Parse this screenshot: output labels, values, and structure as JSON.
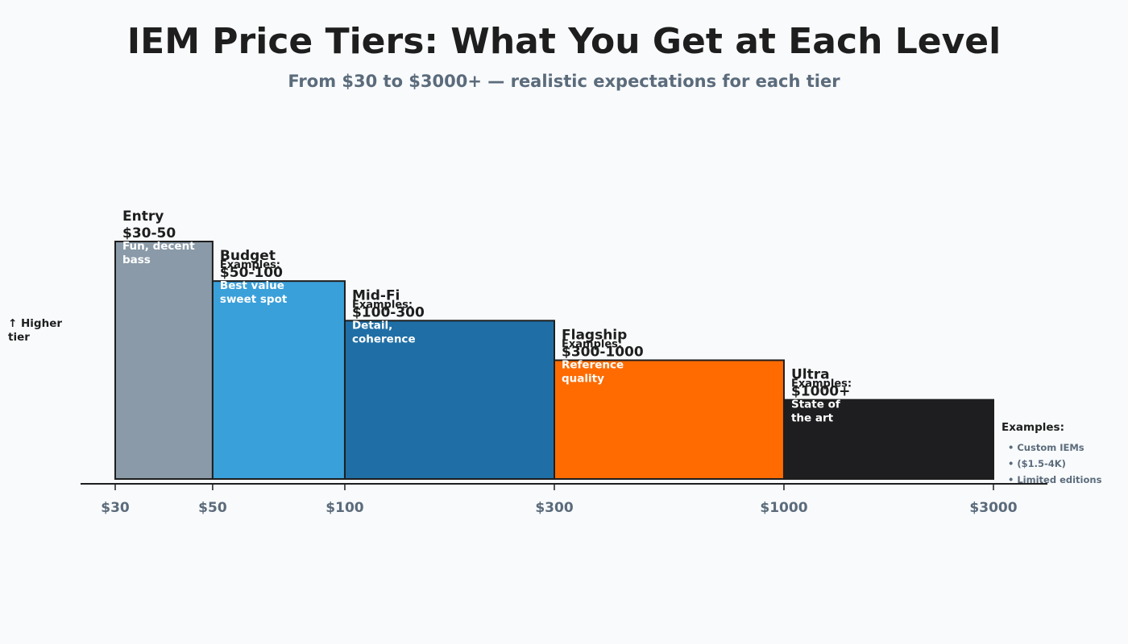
{
  "chart_data": {
    "type": "bar",
    "title": "IEM Price Tiers: What You Get at Each Level",
    "subtitle": "From $30 to $3000+ — realistic expectations for each tier",
    "x_scale": "log",
    "x_ticks": [
      {
        "value": 30,
        "label": "$30"
      },
      {
        "value": 50,
        "label": "$50"
      },
      {
        "value": 100,
        "label": "$100"
      },
      {
        "value": 300,
        "label": "$300"
      },
      {
        "value": 1000,
        "label": "$1000"
      },
      {
        "value": 3000,
        "label": "$3000"
      }
    ],
    "ylabel_lines": [
      "↑ Higher",
      "tier"
    ],
    "ylim": [
      0,
      6
    ],
    "tiers": [
      {
        "name": "Entry",
        "range": "$30-50",
        "x_start": 30,
        "x_end": 50,
        "level": 6,
        "color": "#8a9aa8",
        "examples_label": "",
        "desc": [
          "Fun, decent",
          "bass"
        ]
      },
      {
        "name": "Budget",
        "range": "$50-100",
        "x_start": 50,
        "x_end": 100,
        "level": 5,
        "color": "#3aa0da",
        "examples_label": "Examples:",
        "desc": [
          "Best value",
          "sweet spot"
        ]
      },
      {
        "name": "Mid-Fi",
        "range": "$100-300",
        "x_start": 100,
        "x_end": 300,
        "level": 4,
        "color": "#1f6fa6",
        "examples_label": "Examples:",
        "desc": [
          "Detail,",
          "coherence"
        ]
      },
      {
        "name": "Flagship",
        "range": "$300-1000",
        "x_start": 300,
        "x_end": 1000,
        "level": 3,
        "color": "#ff6b00",
        "examples_label": "Examples:",
        "desc": [
          "Reference",
          "quality"
        ]
      },
      {
        "name": "Ultra",
        "range": "$1000+",
        "x_start": 1000,
        "x_end": 3000,
        "level": 2,
        "color": "#1e1e20",
        "examples_label": "Examples:",
        "desc": [
          "State of",
          "the art"
        ]
      }
    ],
    "side_note": {
      "heading": "Examples:",
      "items": [
        "• Custom IEMs",
        "• ($1.5-4K)",
        "• Limited editions"
      ]
    },
    "grid": false,
    "legend": "none"
  }
}
